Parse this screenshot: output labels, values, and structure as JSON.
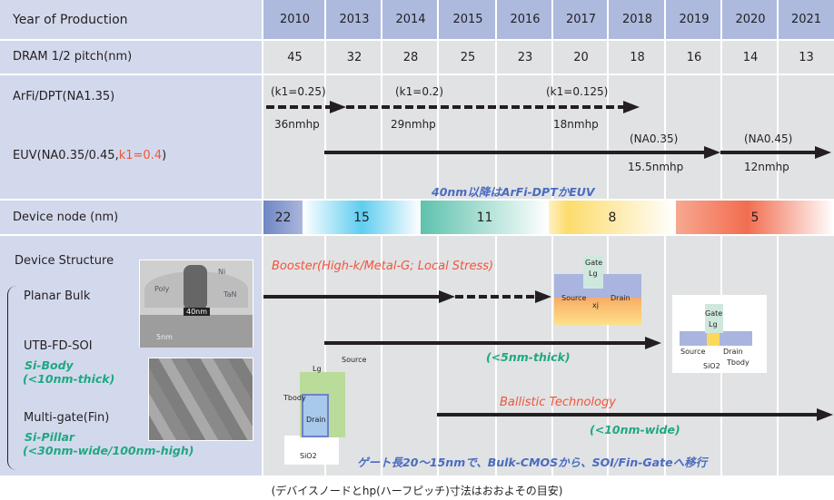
{
  "rows": {
    "year_label": "Year of Production",
    "pitch_label": "DRAM 1/2 pitch(nm)",
    "arfi_label": "ArFi/DPT(NA1.35)",
    "euv_label_prefix": "EUV(NA0.35/0.45,",
    "euv_label_k1": "k1=0.4",
    "euv_label_suffix": ")",
    "node_label": "Device node (nm)",
    "structure_label": "Device Structure"
  },
  "years": [
    "2010",
    "2013",
    "2014",
    "2015",
    "2016",
    "2017",
    "2018",
    "2019",
    "2020",
    "2021"
  ],
  "half_pitch": [
    "45",
    "32",
    "28",
    "25",
    "23",
    "20",
    "18",
    "16",
    "14",
    "13"
  ],
  "arfi": {
    "k1": [
      "(k1=0.25)",
      "(k1=0.2)",
      "(k1=0.125)"
    ],
    "hp": [
      "36nmhp",
      "29nmhp",
      "18nmhp"
    ]
  },
  "euv": {
    "na": [
      "(NA0.35)",
      "(NA0.45)"
    ],
    "hp": [
      "15.5nmhp",
      "12nmhp"
    ]
  },
  "note_euv": "40nm以降はArFi-DPTかEUV",
  "nodes": [
    {
      "value": "22",
      "color": "#6f86c4"
    },
    {
      "value": "15",
      "color": "#5fcdf0"
    },
    {
      "value": "11",
      "color": "#5ec2ad"
    },
    {
      "value": "8",
      "color": "#fcdc6c"
    },
    {
      "value": "5",
      "color": "#f26d50"
    }
  ],
  "structures": {
    "planar": "Planar Bulk",
    "utb": "UTB-FD-SOI",
    "utb_sub1": "Si-Body",
    "utb_sub2": "(<10nm-thick)",
    "fin": "Multi-gate(Fin)",
    "fin_sub1": "Si-Pillar",
    "fin_sub2": "(<30nm-wide/100nm-high)"
  },
  "annotations": {
    "booster": "Booster(High-k/Metal-G; Local Stress)",
    "utb_thick": "(<5nm-thick)",
    "ballistic": "Ballistic Technology",
    "fin_wide": "(<10nm-wide)",
    "migration": "ゲート長20～15nmで、Bulk-CMOSから、SOI/Fin-Gateへ移行"
  },
  "tem_labels": {
    "ni": "Ni",
    "poly": "Poly",
    "tan": "TaN",
    "width": "40nm",
    "scale": "5nm"
  },
  "diagram_labels": {
    "gate": "Gate",
    "lg": "Lg",
    "source": "Source",
    "drain": "Drain",
    "xj": "xj",
    "sio2": "SiO2",
    "tbody": "Tbody"
  },
  "caption": "(デバイスノードとhp(ハーフピッチ)寸法はおおよその目安)",
  "colors": {
    "header": "#adbade",
    "label_panel": "#d3d9ec",
    "cell": "#e1e2e4",
    "accent_red": "#f0553b",
    "accent_green": "#1fa882",
    "accent_blue": "#4a6cbf"
  }
}
